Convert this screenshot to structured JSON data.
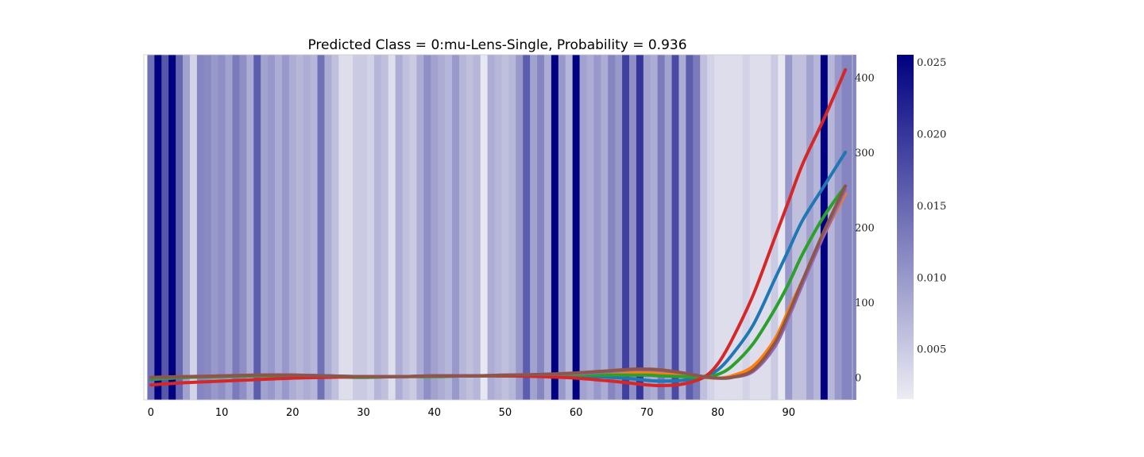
{
  "chart_data": {
    "type": "heatmap",
    "title": "Predicted Class = 0:mu-Lens-Single, Probability = 0.936",
    "x_ticks": [
      0,
      10,
      20,
      30,
      40,
      50,
      60,
      70,
      80,
      90
    ],
    "xlim": [
      -1,
      99
    ],
    "y_right_ticks": [
      0,
      100,
      200,
      300,
      400
    ],
    "ylim": [
      -30,
      430
    ],
    "colormap": "light-to-navy",
    "colorbar": {
      "ticks": [
        "0.005",
        "0.010",
        "0.015",
        "0.020",
        "0.025"
      ],
      "tick_values": [
        0.005,
        0.01,
        0.015,
        0.02,
        0.025
      ],
      "range": [
        0.0015,
        0.0255
      ],
      "low_color": "#ececf3",
      "high_color": "#000080"
    },
    "heat_values": [
      0.014,
      0.0255,
      0.0165,
      0.0255,
      0.015,
      0.009,
      0.004,
      0.012,
      0.0115,
      0.01,
      0.011,
      0.009,
      0.013,
      0.011,
      0.008,
      0.016,
      0.009,
      0.01,
      0.008,
      0.01,
      0.008,
      0.007,
      0.008,
      0.007,
      0.014,
      0.008,
      0.006,
      0.003,
      0.003,
      0.005,
      0.005,
      0.004,
      0.007,
      0.006,
      0.003,
      0.008,
      0.006,
      0.005,
      0.008,
      0.011,
      0.009,
      0.008,
      0.007,
      0.01,
      0.007,
      0.006,
      0.007,
      0.002,
      0.008,
      0.007,
      0.006,
      0.007,
      0.01,
      0.016,
      0.009,
      0.012,
      0.008,
      0.0255,
      0.01,
      0.007,
      0.0255,
      0.009,
      0.008,
      0.01,
      0.008,
      0.012,
      0.01,
      0.019,
      0.011,
      0.02,
      0.009,
      0.008,
      0.013,
      0.009,
      0.018,
      0.008,
      0.016,
      0.013,
      0.006,
      0.004,
      0.003,
      0.003,
      0.003,
      0.003,
      0.004,
      0.003,
      0.003,
      0.003,
      0.005,
      0.002,
      0.01,
      0.006,
      0.006,
      0.009,
      0.007,
      0.0255,
      0.007,
      0.01,
      0.012,
      0.012
    ],
    "series": [
      {
        "color": "#1f77b4",
        "x": [
          0,
          5,
          10,
          15,
          20,
          25,
          30,
          35,
          40,
          45,
          50,
          55,
          60,
          65,
          68,
          70,
          72,
          75,
          78,
          80,
          82,
          85,
          88,
          90,
          92,
          95,
          98
        ],
        "y": [
          -3,
          0,
          2,
          3,
          3,
          2,
          1,
          1,
          2,
          2,
          2,
          3,
          2,
          0,
          -2,
          -4,
          -5,
          -4,
          1,
          10,
          30,
          70,
          130,
          170,
          210,
          255,
          300
        ]
      },
      {
        "color": "#ff7f0e",
        "x": [
          0,
          5,
          10,
          15,
          20,
          25,
          30,
          35,
          40,
          45,
          50,
          55,
          60,
          65,
          68,
          70,
          72,
          75,
          78,
          80,
          82,
          85,
          88,
          90,
          92,
          95,
          98
        ],
        "y": [
          -2,
          0,
          1,
          2,
          2,
          1,
          0,
          1,
          1,
          2,
          2,
          3,
          4,
          5,
          6,
          6,
          5,
          3,
          0,
          -1,
          2,
          15,
          50,
          90,
          130,
          190,
          245
        ]
      },
      {
        "color": "#2ca02c",
        "x": [
          0,
          5,
          10,
          15,
          20,
          25,
          30,
          35,
          40,
          45,
          50,
          55,
          60,
          65,
          68,
          70,
          72,
          75,
          78,
          80,
          82,
          85,
          88,
          90,
          92,
          95,
          98
        ],
        "y": [
          -2,
          0,
          1,
          2,
          2,
          1,
          0,
          1,
          1,
          2,
          2,
          3,
          3,
          3,
          3,
          3,
          2,
          1,
          0,
          4,
          15,
          45,
          90,
          125,
          165,
          215,
          255
        ]
      },
      {
        "color": "#d62728",
        "x": [
          0,
          5,
          10,
          15,
          20,
          25,
          30,
          35,
          40,
          45,
          50,
          55,
          60,
          65,
          68,
          70,
          72,
          75,
          78,
          80,
          82,
          85,
          88,
          90,
          92,
          95,
          98
        ],
        "y": [
          -10,
          -7,
          -5,
          -3,
          -1,
          0,
          1,
          1,
          2,
          2,
          2,
          1,
          -1,
          -5,
          -8,
          -10,
          -11,
          -9,
          0,
          18,
          50,
          110,
          185,
          235,
          285,
          345,
          410
        ]
      },
      {
        "color": "#9467bd",
        "x": [
          0,
          5,
          10,
          15,
          20,
          25,
          30,
          35,
          40,
          45,
          50,
          55,
          60,
          65,
          68,
          70,
          72,
          75,
          78,
          80,
          82,
          85,
          88,
          90,
          92,
          95,
          98
        ],
        "y": [
          0,
          1,
          2,
          3,
          3,
          2,
          1,
          1,
          2,
          2,
          3,
          4,
          5,
          8,
          10,
          10,
          9,
          6,
          1,
          -1,
          0,
          8,
          40,
          80,
          125,
          190,
          250
        ]
      },
      {
        "color": "#8c564b",
        "x": [
          0,
          5,
          10,
          15,
          20,
          25,
          30,
          35,
          40,
          45,
          50,
          55,
          60,
          65,
          68,
          70,
          72,
          75,
          78,
          80,
          82,
          85,
          88,
          90,
          92,
          95,
          98
        ],
        "y": [
          0,
          1,
          2,
          3,
          3,
          2,
          1,
          1,
          2,
          2,
          3,
          4,
          6,
          9,
          11,
          11,
          10,
          6,
          1,
          -1,
          0,
          10,
          45,
          85,
          130,
          195,
          255
        ]
      }
    ]
  }
}
